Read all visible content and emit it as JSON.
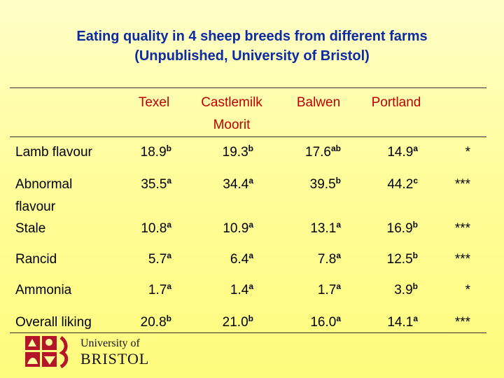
{
  "title": {
    "line1": "Eating quality in 4 sheep breeds from different farms",
    "line2": "(Unpublished, University of Bristol)"
  },
  "table": {
    "columns": [
      "Texel",
      "Castlemilk Moorit",
      "Balwen",
      "Portland"
    ],
    "column_lines": [
      [
        "Texel"
      ],
      [
        "Castlemilk",
        "Moorit"
      ],
      [
        "Balwen"
      ],
      [
        "Portland"
      ]
    ],
    "rows": [
      {
        "label": "Lamb flavour",
        "cells": [
          [
            "18.9",
            "b"
          ],
          [
            "19.3",
            "b"
          ],
          [
            "17.6",
            "ab"
          ],
          [
            "14.9",
            "a"
          ]
        ],
        "sig": "*"
      },
      {
        "label_lines": [
          "Abnormal",
          "flavour"
        ],
        "label": "Abnormal flavour",
        "cells": [
          [
            "35.5",
            "a"
          ],
          [
            "34.4",
            "a"
          ],
          [
            "39.5",
            "b"
          ],
          [
            "44.2",
            "c"
          ]
        ],
        "sig": "***"
      },
      {
        "label": "Stale",
        "cells": [
          [
            "10.8",
            "a"
          ],
          [
            "10.9",
            "a"
          ],
          [
            "13.1",
            "a"
          ],
          [
            "16.9",
            "b"
          ]
        ],
        "sig": "***"
      },
      {
        "label": "Rancid",
        "cells": [
          [
            "5.7",
            "a"
          ],
          [
            "6.4",
            "a"
          ],
          [
            "7.8",
            "a"
          ],
          [
            "12.5",
            "b"
          ]
        ],
        "sig": "***"
      },
      {
        "label": "Ammonia",
        "cells": [
          [
            "1.7",
            "a"
          ],
          [
            "1.4",
            "a"
          ],
          [
            "1.7",
            "a"
          ],
          [
            "3.9",
            "b"
          ]
        ],
        "sig": "*"
      },
      {
        "label": "Overall liking",
        "cells": [
          [
            "20.8",
            "b"
          ],
          [
            "21.0",
            "b"
          ],
          [
            "16.0",
            "a"
          ],
          [
            "14.1",
            "a"
          ]
        ],
        "sig": "***"
      }
    ]
  },
  "logo": {
    "line1": "University of",
    "line2": "BRISTOL",
    "icon": "university-crest-icon"
  },
  "colors": {
    "title": "#0b2ba5",
    "header": "#c00000",
    "crest": "#b5152b"
  }
}
